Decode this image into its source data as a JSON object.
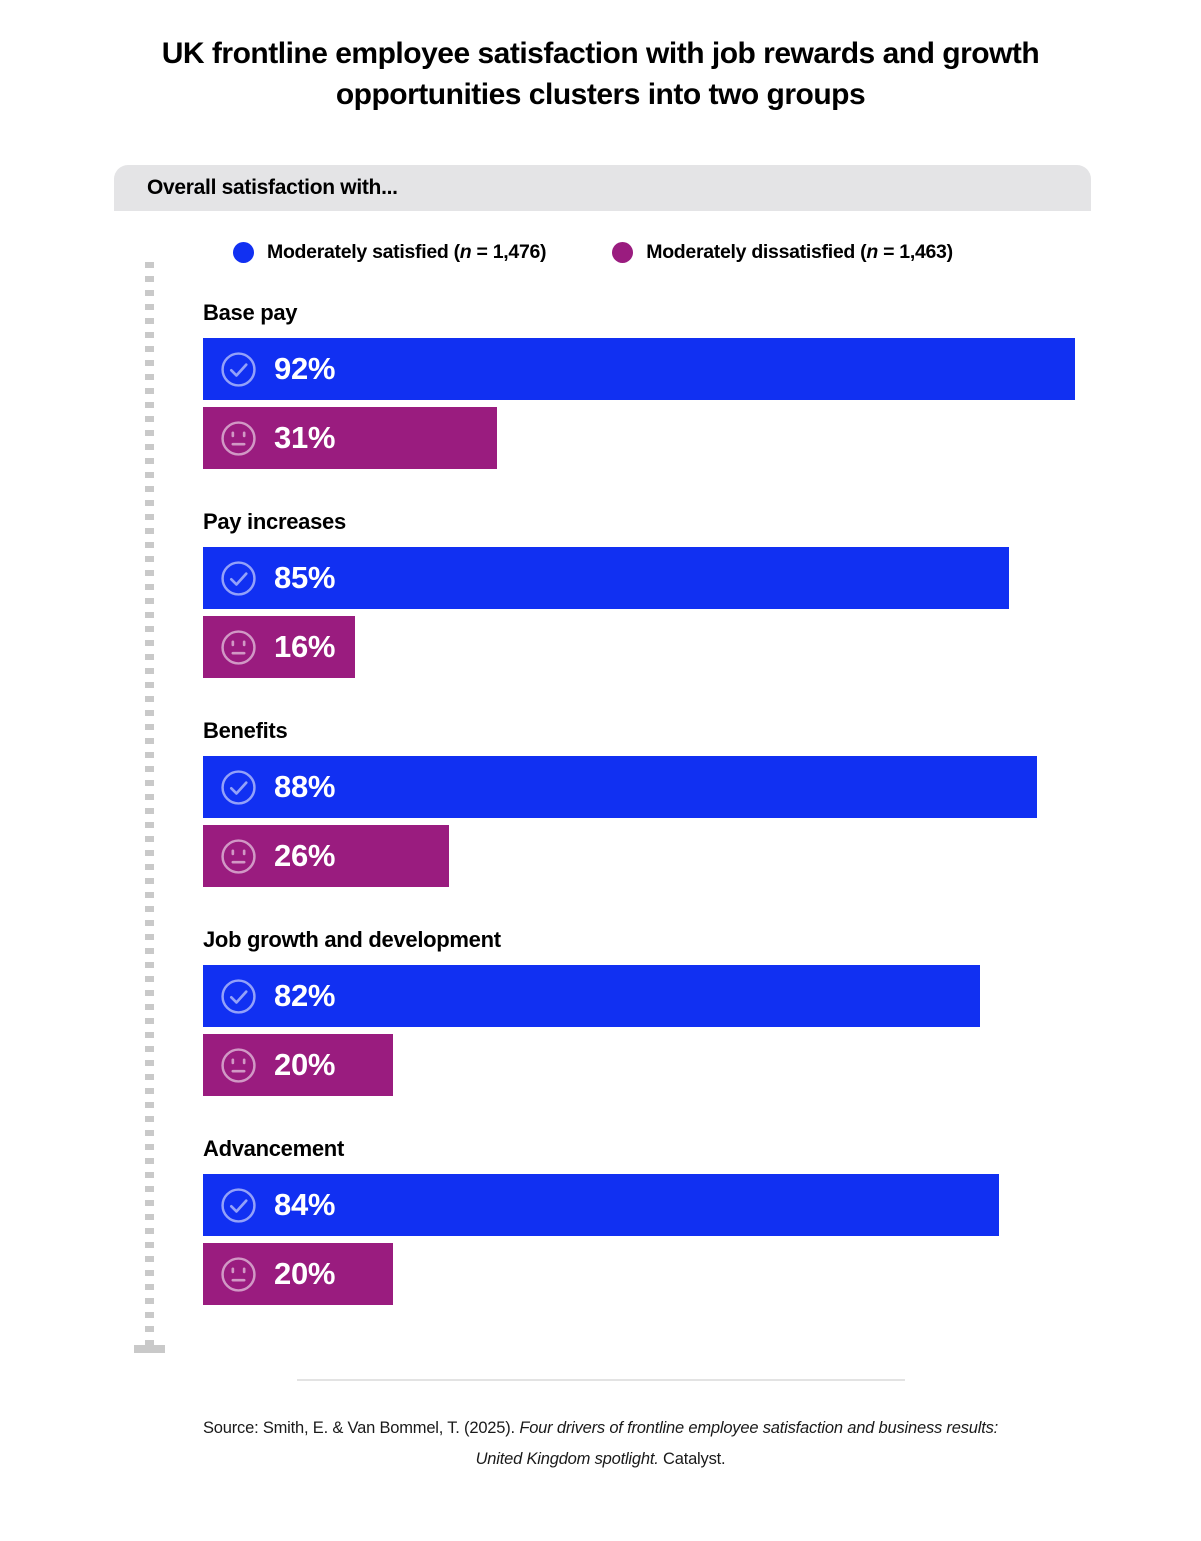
{
  "title_lines": [
    "UK frontline employee satisfaction with job rewards and growth",
    "opportunities clusters into two groups"
  ],
  "panel_header": "Overall satisfaction with...",
  "legend": {
    "satisfied": {
      "pre": "Moderately satisfied (",
      "n": "n",
      "post": " = 1,476)"
    },
    "dissatisfied": {
      "pre": "Moderately dissatisfied (",
      "n": "n",
      "post": " = 1,463)"
    }
  },
  "sections": [
    {
      "label": "Base pay",
      "satisfied": {
        "value": 92,
        "display": "92%"
      },
      "dissatisfied": {
        "value": 31,
        "display": "31%"
      }
    },
    {
      "label": "Pay increases",
      "satisfied": {
        "value": 85,
        "display": "85%"
      },
      "dissatisfied": {
        "value": 16,
        "display": "16%"
      }
    },
    {
      "label": "Benefits",
      "satisfied": {
        "value": 88,
        "display": "88%"
      },
      "dissatisfied": {
        "value": 26,
        "display": "26%"
      }
    },
    {
      "label": "Job growth and development",
      "satisfied": {
        "value": 82,
        "display": "82%"
      },
      "dissatisfied": {
        "value": 20,
        "display": "20%"
      }
    },
    {
      "label": "Advancement",
      "satisfied": {
        "value": 84,
        "display": "84%"
      },
      "dissatisfied": {
        "value": 20,
        "display": "20%"
      }
    }
  ],
  "source": {
    "prefix": "Source: Smith, E. & Van Bommel, T. (2025). ",
    "italic": "Four drivers of frontline employee satisfaction and business results: United Kingdom spotlight.",
    "suffix": " Catalyst."
  },
  "colors": {
    "satisfied": "#1130F2",
    "dissatisfied": "#9A1C7F",
    "panel-bg": "#E4E4E6",
    "axis-gray": "#C9C9C9",
    "divider": "#E3E3E3"
  },
  "chart_data": {
    "type": "bar",
    "orientation": "horizontal",
    "title": "UK frontline employee satisfaction with job rewards and growth opportunities clusters into two groups",
    "panel_label": "Overall satisfaction with...",
    "categories": [
      "Base pay",
      "Pay increases",
      "Benefits",
      "Job growth and development",
      "Advancement"
    ],
    "series": [
      {
        "name": "Moderately satisfied (n = 1,476)",
        "values": [
          92,
          85,
          88,
          82,
          84
        ],
        "color": "#1130F2",
        "icon": "check-circle"
      },
      {
        "name": "Moderately dissatisfied (n = 1,463)",
        "values": [
          31,
          16,
          26,
          20,
          20
        ],
        "color": "#9A1C7F",
        "icon": "neutral-face"
      }
    ],
    "value_format": "percent",
    "xlim": [
      0,
      100
    ],
    "grid": false,
    "legend_position": "top",
    "data_labels": "inside-start",
    "source": "Source: Smith, E. & Van Bommel, T. (2025). Four drivers of frontline employee satisfaction and business results: United Kingdom spotlight. Catalyst."
  }
}
